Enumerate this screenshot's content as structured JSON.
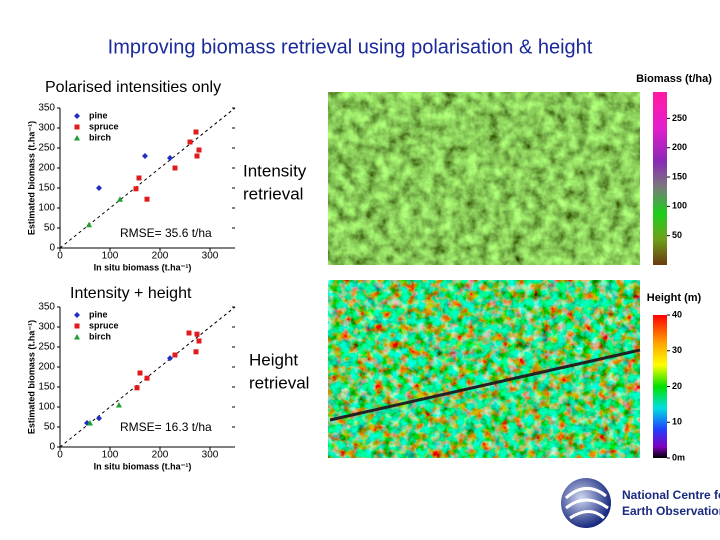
{
  "title": "Improving biomass retrieval using polarisation & height",
  "chart_data": [
    {
      "type": "scatter",
      "title": "Polarised intensities only",
      "x_label": "In situ biomass (t.ha⁻¹)",
      "y_label": "Estimated biomass (t.ha⁻¹)",
      "annotation": "RMSE= 35.6 t/ha",
      "legend": "upper left",
      "identity_line": true,
      "xlim": [
        0,
        350
      ],
      "ylim": [
        0,
        350
      ],
      "xticks": [
        0,
        100,
        200,
        300
      ],
      "yticks": [
        0,
        50,
        100,
        150,
        200,
        250,
        300,
        350
      ],
      "series": [
        {
          "name": "pine",
          "color": "#1f2fbf",
          "marker": "diamond",
          "x": [
            78,
            170,
            220
          ],
          "values": [
            150,
            230,
            225
          ]
        },
        {
          "name": "spruce",
          "color": "#e01b1b",
          "marker": "square",
          "x": [
            158,
            152,
            174,
            230,
            260,
            272,
            278,
            274
          ],
          "values": [
            175,
            148,
            122,
            200,
            265,
            290,
            245,
            230
          ]
        },
        {
          "name": "birch",
          "color": "#1f9f2f",
          "marker": "triangle",
          "x": [
            58,
            120
          ],
          "values": [
            58,
            122
          ]
        }
      ]
    },
    {
      "type": "scatter",
      "title": "Intensity + height",
      "x_label": "In situ biomass (t.ha⁻¹)",
      "y_label": "Estimated biomass (t.ha⁻¹)",
      "annotation": "RMSE= 16.3 t/ha",
      "legend": "upper left",
      "identity_line": true,
      "xlim": [
        0,
        350
      ],
      "ylim": [
        0,
        350
      ],
      "xticks": [
        0,
        100,
        200,
        300
      ],
      "yticks": [
        0,
        50,
        100,
        150,
        200,
        250,
        300,
        350
      ],
      "series": [
        {
          "name": "pine",
          "color": "#1f2fbf",
          "marker": "diamond",
          "x": [
            54,
            78,
            220
          ],
          "values": [
            60,
            72,
            222
          ]
        },
        {
          "name": "spruce",
          "color": "#e01b1b",
          "marker": "square",
          "x": [
            154,
            160,
            174,
            230,
            258,
            274,
            278,
            272
          ],
          "values": [
            148,
            185,
            172,
            230,
            285,
            282,
            265,
            238
          ]
        },
        {
          "name": "birch",
          "color": "#1f9f2f",
          "marker": "triangle",
          "x": [
            60,
            118
          ],
          "values": [
            60,
            105
          ]
        }
      ]
    }
  ],
  "maps": [
    {
      "label_lines": [
        "Intensity",
        "retrieval"
      ],
      "legend_title": "Biomass (t/ha)",
      "legend_lim": [
        0,
        295
      ],
      "legend_ticks": [
        250,
        200,
        150,
        100,
        50
      ]
    },
    {
      "label_lines": [
        "Height",
        "retrieval"
      ],
      "legend_title": "Height (m)",
      "legend_lim": [
        0,
        40
      ],
      "legend_ticks": [
        40,
        30,
        20,
        10,
        {
          "value": 0,
          "label": "0m"
        }
      ]
    }
  ],
  "logo_lines": [
    "National Centre for",
    "Earth Observation"
  ]
}
